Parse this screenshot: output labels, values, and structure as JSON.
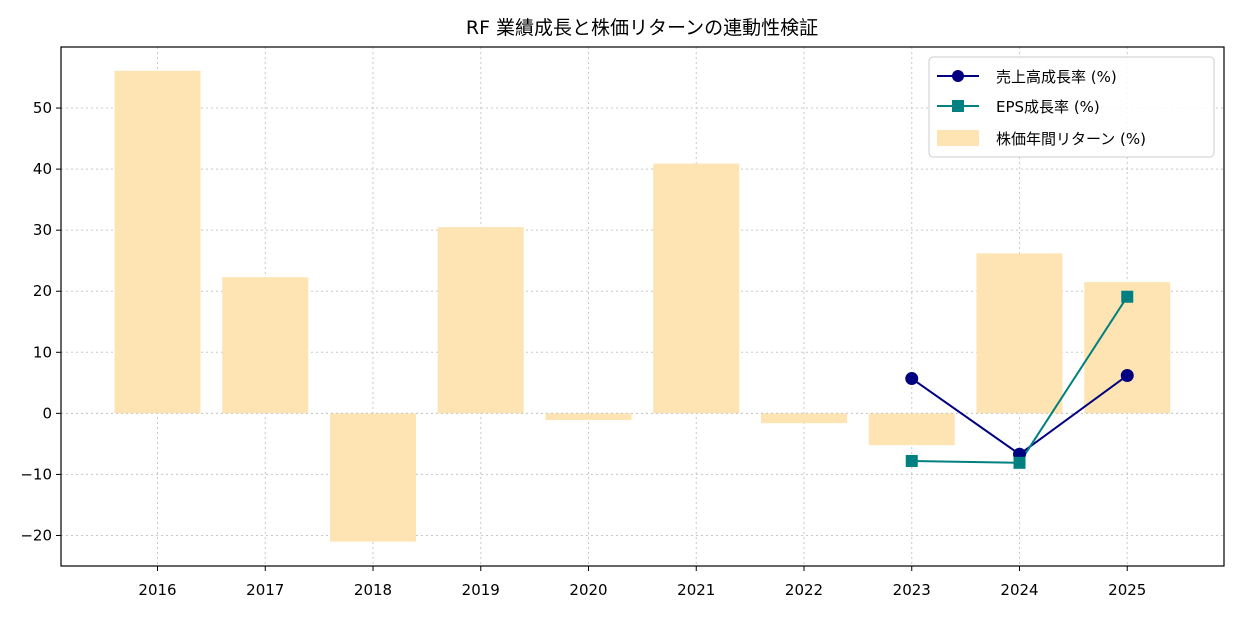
{
  "chart_data": {
    "type": "bar",
    "title": "RF 業績成長と株価リターンの連動性検証",
    "categories": [
      "2016",
      "2017",
      "2018",
      "2019",
      "2020",
      "2021",
      "2022",
      "2023",
      "2024",
      "2025"
    ],
    "ylim": [
      -25,
      60
    ],
    "yticks": [
      -20,
      -10,
      0,
      10,
      20,
      30,
      40,
      50
    ],
    "grid": true,
    "legend_position": "top-right",
    "series": [
      {
        "name": "株価年間リターン (%)",
        "kind": "bar",
        "color": "#ffe4b3",
        "values": [
          56.1,
          22.3,
          -21.0,
          30.5,
          -1.1,
          40.9,
          -1.6,
          -5.2,
          26.2,
          21.5
        ]
      },
      {
        "name": "売上高成長率 (%)",
        "kind": "line",
        "marker": "circle",
        "color": "#000080",
        "values": [
          null,
          null,
          null,
          null,
          null,
          null,
          null,
          5.7,
          -6.7,
          6.2
        ]
      },
      {
        "name": "EPS成長率 (%)",
        "kind": "line",
        "marker": "square",
        "color": "#008080",
        "values": [
          null,
          null,
          null,
          null,
          null,
          null,
          null,
          -7.8,
          -8.1,
          19.1
        ]
      }
    ]
  }
}
